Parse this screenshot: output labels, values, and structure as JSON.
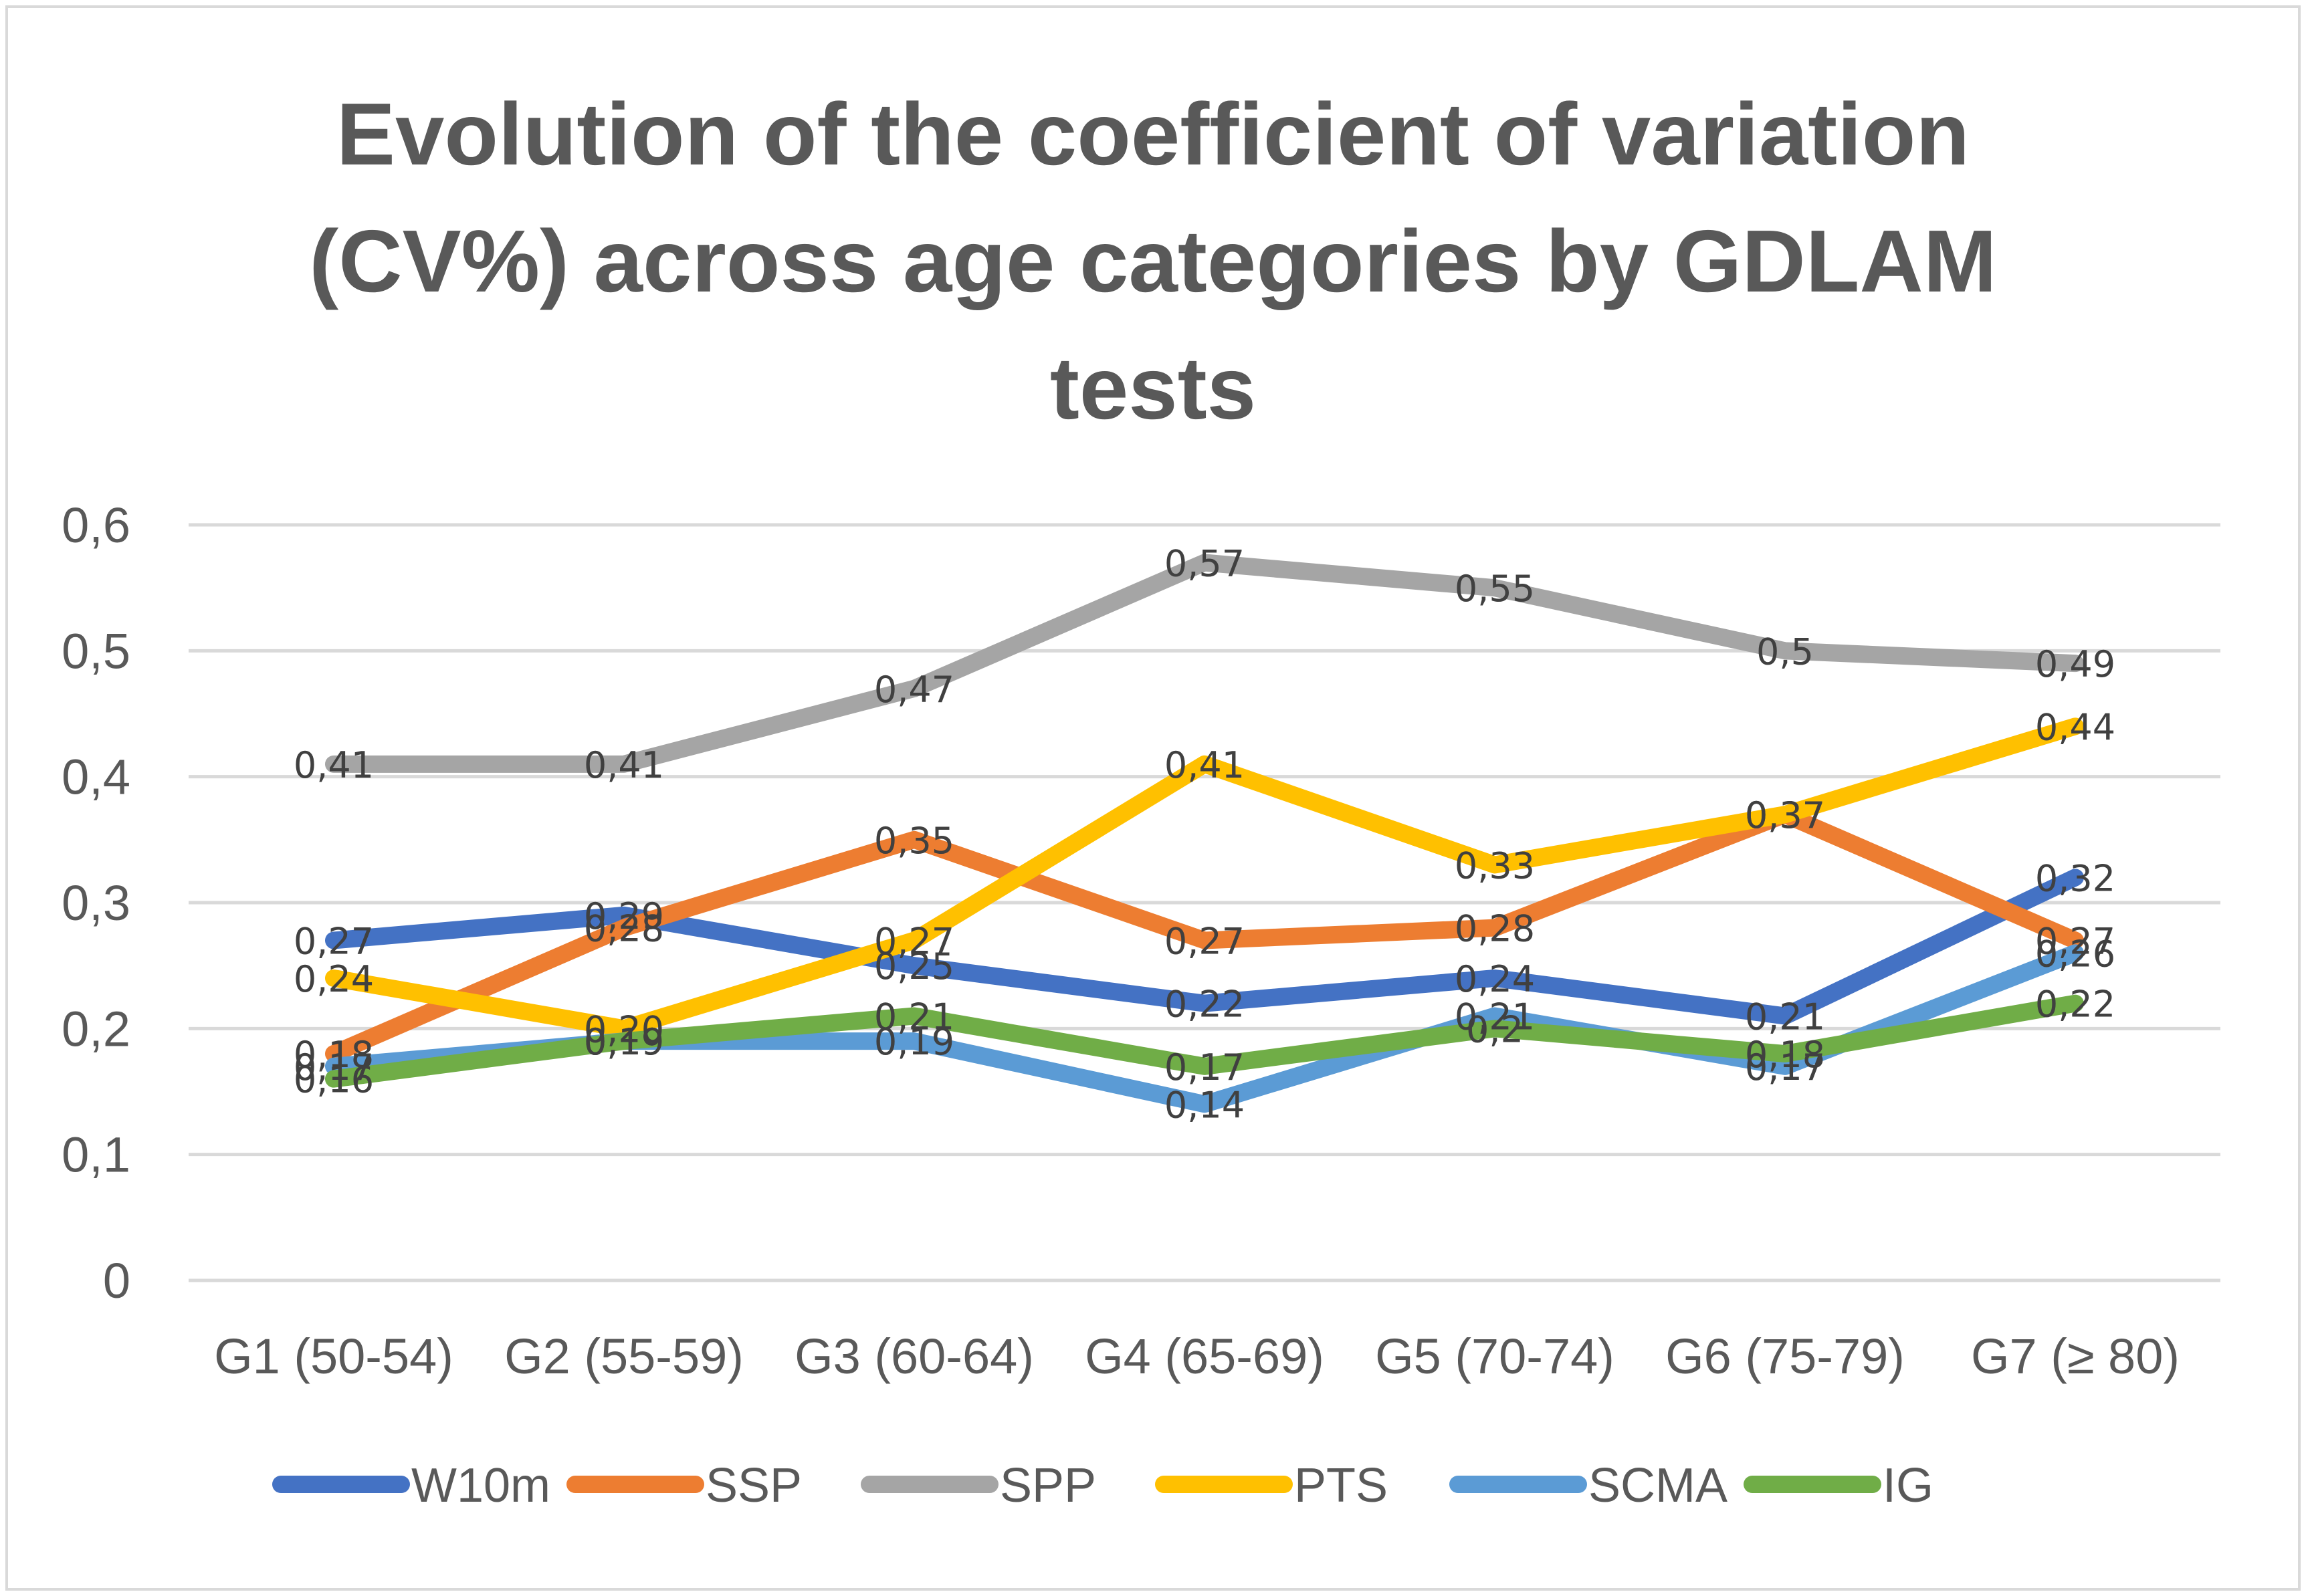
{
  "chart_data": {
    "type": "line",
    "title_lines": [
      "Evolution of the coefficient of variation",
      "(CV%) across age categories by GDLAM",
      "tests"
    ],
    "categories": [
      "G1 (50-54)",
      "G2 (55-59)",
      "G3 (60-64)",
      "G4 (65-69)",
      "G5 (70-74)",
      "G6 (75-79)",
      "G7 (≥ 80)"
    ],
    "y_ticks": [
      "0",
      "0,1",
      "0,2",
      "0,3",
      "0,4",
      "0,5",
      "0,6"
    ],
    "ylim": [
      0,
      0.6
    ],
    "grid": true,
    "legend_position": "bottom",
    "series": [
      {
        "name": "W10m",
        "color": "#4472c4",
        "values": [
          0.27,
          0.29,
          0.25,
          0.22,
          0.24,
          0.21,
          0.32
        ],
        "labels": [
          "0,27",
          "0,29",
          "0,25",
          "0,22",
          "0,24",
          "0,21",
          "0,32"
        ]
      },
      {
        "name": "SSP",
        "color": "#ed7d31",
        "values": [
          0.18,
          0.28,
          0.35,
          0.27,
          0.28,
          0.37,
          0.27
        ],
        "labels": [
          "0,18",
          "0,28",
          "0,35",
          "0,27",
          "0,28",
          "0,37",
          "0,27"
        ]
      },
      {
        "name": "SPP",
        "color": "#a5a5a5",
        "values": [
          0.41,
          0.41,
          0.47,
          0.57,
          0.55,
          0.5,
          0.49
        ],
        "labels": [
          "0,41",
          "0,41",
          "0,47",
          "0,57",
          "0,55",
          "0,5",
          "0,49"
        ]
      },
      {
        "name": "PTS",
        "color": "#ffc000",
        "values": [
          0.24,
          0.2,
          0.27,
          0.41,
          0.33,
          0.37,
          0.44
        ],
        "labels": [
          "0,24",
          "0,20",
          "0,27",
          "0,41",
          "0,33",
          "0,37",
          "0,44"
        ]
      },
      {
        "name": "SCMA",
        "color": "#5b9bd5",
        "values": [
          0.17,
          0.19,
          0.19,
          0.14,
          0.21,
          0.17,
          0.26
        ],
        "labels": [
          "0,17",
          "0,19",
          "0,19",
          "0,14",
          "0,21",
          "0,17",
          "0,26"
        ]
      },
      {
        "name": "IG",
        "color": "#70ad47",
        "values": [
          0.16,
          0.19,
          0.21,
          0.17,
          0.2,
          0.18,
          0.22
        ],
        "labels": [
          "0,16",
          "0,19",
          "0,21",
          "0,17",
          "0,2",
          "0,18",
          "0,22"
        ]
      }
    ]
  }
}
